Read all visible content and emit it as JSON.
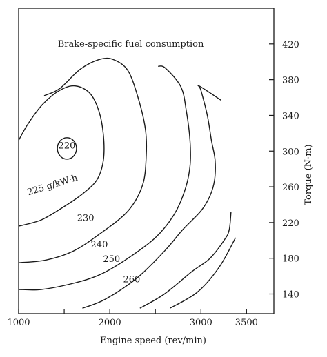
{
  "chart_data": {
    "type": "contour",
    "title": "Brake-specific fuel consumption",
    "xlabel": "Engine speed (rev/min)",
    "ylabel": "Torque (N·m)",
    "xlim": [
      1000,
      3800
    ],
    "ylim": [
      118,
      460
    ],
    "x_ticks": [
      1000,
      2000,
      3000,
      3500
    ],
    "x_minor_ticks": [
      1500,
      2500
    ],
    "y_ticks": [
      140,
      180,
      220,
      260,
      300,
      340,
      380,
      420
    ],
    "y_axis_side": "right",
    "grid": false,
    "contours": [
      {
        "label": "220",
        "closed": true,
        "center": [
          1530,
          303
        ],
        "rx": 105,
        "ry": 12
      },
      {
        "label": "225 g/kW·h",
        "points": [
          [
            1000,
            216
          ],
          [
            1250,
            223
          ],
          [
            1500,
            238
          ],
          [
            1700,
            252
          ],
          [
            1860,
            268
          ],
          [
            1930,
            290
          ],
          [
            1930,
            318
          ],
          [
            1880,
            345
          ],
          [
            1780,
            365
          ],
          [
            1620,
            373
          ],
          [
            1450,
            368
          ],
          [
            1260,
            352
          ],
          [
            1100,
            330
          ],
          [
            1000,
            312
          ]
        ]
      },
      {
        "label": "230",
        "points": [
          [
            1000,
            175
          ],
          [
            1300,
            178
          ],
          [
            1600,
            188
          ],
          [
            1900,
            208
          ],
          [
            2200,
            233
          ],
          [
            2360,
            262
          ],
          [
            2400,
            295
          ],
          [
            2390,
            325
          ],
          [
            2310,
            360
          ],
          [
            2200,
            390
          ],
          [
            2050,
            402
          ],
          [
            1900,
            403
          ],
          [
            1680,
            392
          ],
          [
            1450,
            370
          ],
          [
            1280,
            362
          ]
        ]
      },
      {
        "label": "240",
        "points": [
          [
            1000,
            145
          ],
          [
            1250,
            145
          ],
          [
            1600,
            152
          ],
          [
            1900,
            162
          ],
          [
            2200,
            180
          ],
          [
            2500,
            203
          ],
          [
            2700,
            228
          ],
          [
            2820,
            255
          ],
          [
            2880,
            283
          ],
          [
            2880,
            312
          ],
          [
            2840,
            345
          ],
          [
            2780,
            372
          ],
          [
            2610,
            393
          ],
          [
            2530,
            395
          ]
        ]
      },
      {
        "label": "250",
        "points": [
          [
            1700,
            124
          ],
          [
            1950,
            134
          ],
          [
            2300,
            158
          ],
          [
            2600,
            188
          ],
          [
            2800,
            212
          ],
          [
            3000,
            233
          ],
          [
            3100,
            250
          ],
          [
            3150,
            268
          ],
          [
            3155,
            290
          ],
          [
            3115,
            312
          ],
          [
            3070,
            340
          ],
          [
            3000,
            368
          ],
          [
            2980,
            373
          ],
          [
            3220,
            357
          ]
        ]
      },
      {
        "label": "260",
        "points": [
          [
            2330,
            124
          ],
          [
            2600,
            140
          ],
          [
            2900,
            165
          ],
          [
            3100,
            180
          ],
          [
            3260,
            201
          ],
          [
            3310,
            212
          ],
          [
            3330,
            232
          ]
        ]
      },
      {
        "label": "",
        "points": [
          [
            2660,
            124
          ],
          [
            2960,
            142
          ],
          [
            3200,
            170
          ],
          [
            3380,
            203
          ]
        ]
      }
    ],
    "contour_labels": [
      {
        "text": "220",
        "x": 1530,
        "y": 303
      },
      {
        "text": "225 g/kW·h",
        "x": 1380,
        "y": 259
      },
      {
        "text": "230",
        "x": 1735,
        "y": 222
      },
      {
        "text": "240",
        "x": 1885,
        "y": 192
      },
      {
        "text": "250",
        "x": 2020,
        "y": 176
      },
      {
        "text": "260",
        "x": 2240,
        "y": 153
      }
    ],
    "title_position": {
      "x": 2230,
      "y": 420
    }
  }
}
